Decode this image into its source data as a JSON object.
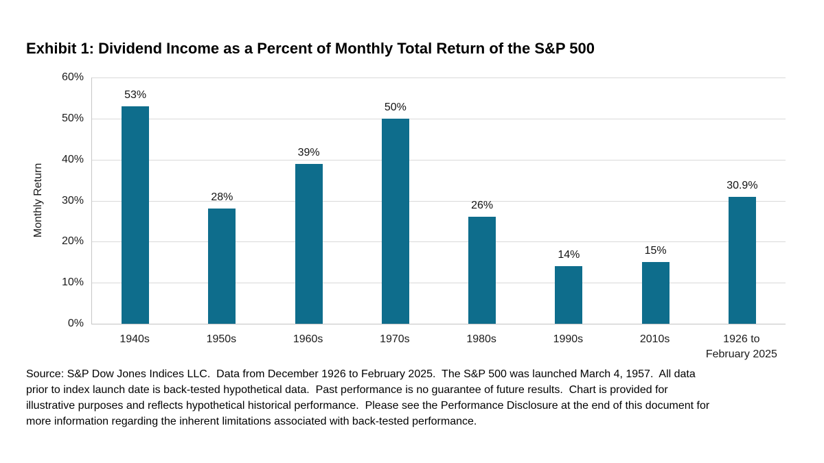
{
  "chart_data": {
    "type": "bar",
    "title": "Exhibit 1: Dividend Income as a Percent of Monthly Total Return of the S&P 500",
    "categories": [
      "1940s",
      "1950s",
      "1960s",
      "1970s",
      "1980s",
      "1990s",
      "2010s",
      "1926 to\nFebruary 2025"
    ],
    "values": [
      53,
      28,
      39,
      50,
      26,
      14,
      15,
      30.9
    ],
    "value_labels": [
      "53%",
      "28%",
      "39%",
      "50%",
      "26%",
      "14%",
      "15%",
      "30.9%"
    ],
    "xlabel": "",
    "ylabel": "Monthly Return",
    "ylim": [
      0,
      60
    ],
    "yticks": [
      0,
      10,
      20,
      30,
      40,
      50,
      60
    ],
    "ytick_labels": [
      "0%",
      "10%",
      "20%",
      "30%",
      "40%",
      "50%",
      "60%"
    ],
    "grid": true,
    "legend": false,
    "bar_color": "#0e6d8c"
  },
  "colors": {
    "bar": "#0e6d8c",
    "gridline": "#d9d9d9",
    "axis_line": "#c6c6c6",
    "text": "#1a1a1a",
    "title_text": "#000000",
    "background": "#ffffff"
  },
  "footer": {
    "source_text": "Source: S&P Dow Jones Indices LLC.  Data from December 1926 to February 2025.  The S&P 500 was launched March 4, 1957.  All data\nprior to index launch date is back-tested hypothetical data.  Past performance is no guarantee of future results.  Chart is provided for\nillustrative purposes and reflects hypothetical historical performance.  Please see the Performance Disclosure at the end of this document for\nmore information regarding the inherent limitations associated with back-tested performance."
  }
}
